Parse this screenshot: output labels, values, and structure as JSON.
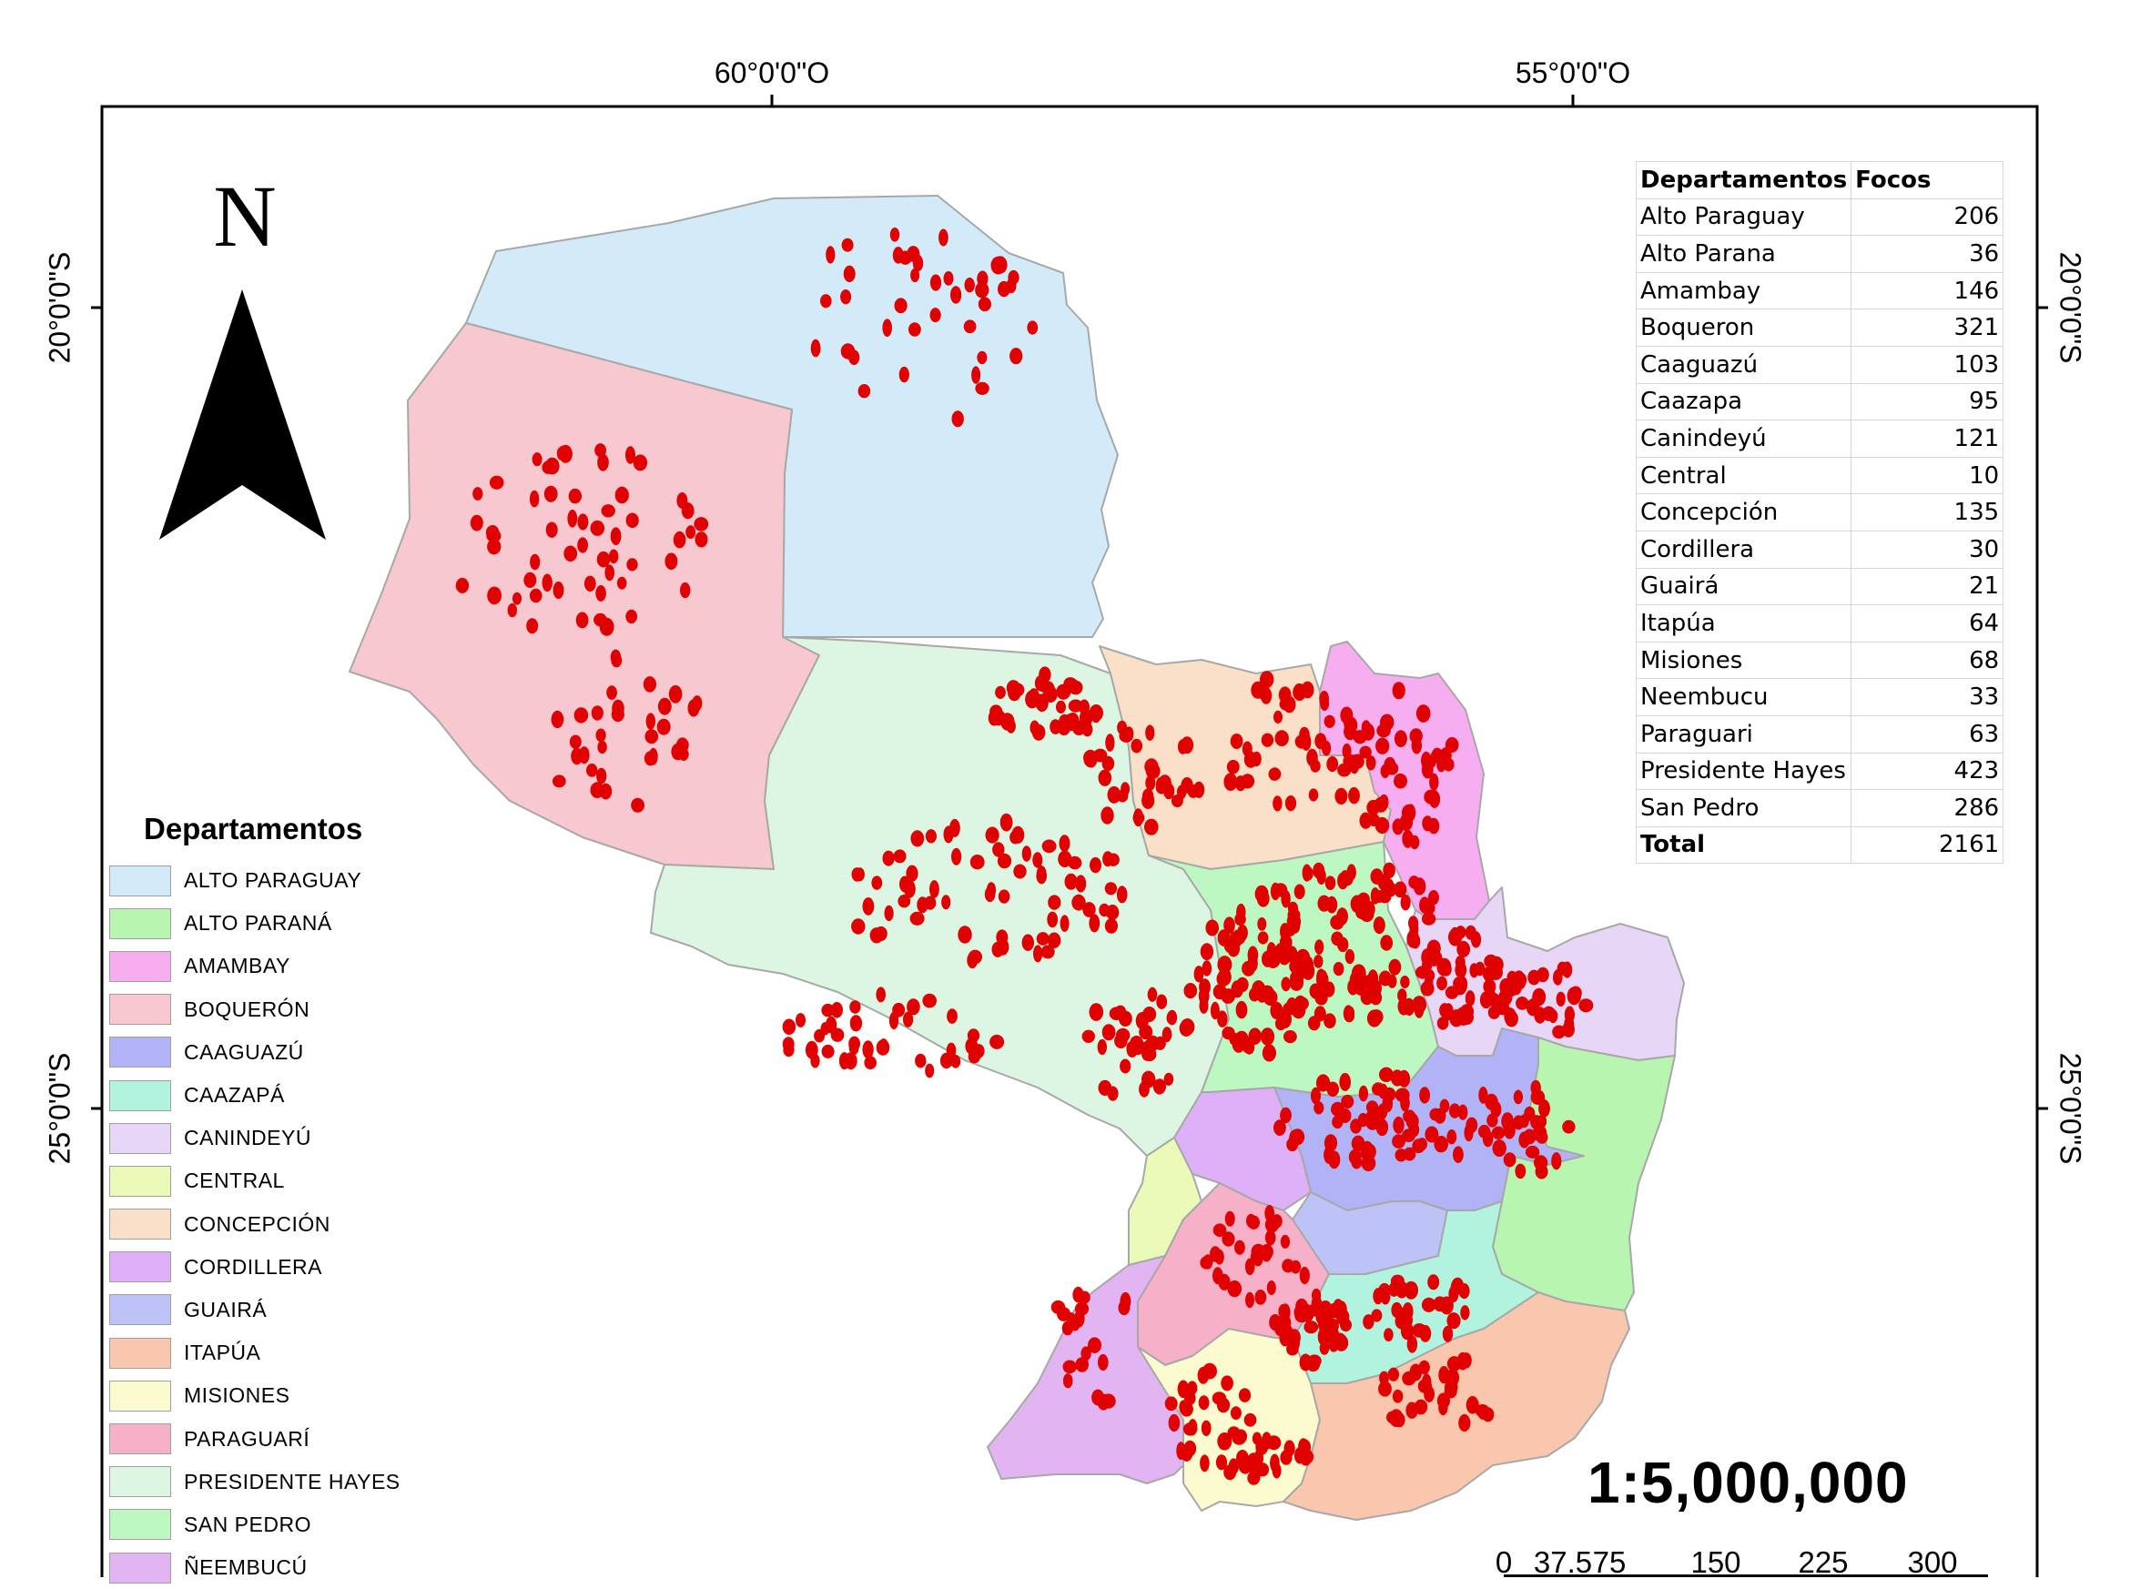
{
  "graticule": {
    "top": [
      "60°0'0\"O",
      "55°0'0\"O"
    ],
    "left": [
      "20°0'0\"S",
      "25°0'0\"S"
    ],
    "right": [
      "20°0'0\"S",
      "25°0'0\"S"
    ]
  },
  "north_arrow": {
    "label": "N"
  },
  "legend": {
    "title": "Departamentos",
    "items": [
      {
        "label": "ALTO PARAGUAY",
        "color": "#d3eaf8"
      },
      {
        "label": "ALTO PARANÁ",
        "color": "#b8f5b0"
      },
      {
        "label": "AMAMBAY",
        "color": "#f6aef0"
      },
      {
        "label": "BOQUERÓN",
        "color": "#f8c8d0"
      },
      {
        "label": "CAAGUAZÚ",
        "color": "#b1b3f6"
      },
      {
        "label": "CAAZAPÁ",
        "color": "#b2f3e0"
      },
      {
        "label": "CANINDEYÚ",
        "color": "#e8d6f7"
      },
      {
        "label": "CENTRAL",
        "color": "#eafab8"
      },
      {
        "label": "CONCEPCIÓN",
        "color": "#fbe0c9"
      },
      {
        "label": "CORDILLERA",
        "color": "#deb0f7"
      },
      {
        "label": "GUAIRÁ",
        "color": "#bdc3f7"
      },
      {
        "label": "ITAPÚA",
        "color": "#f9c7ae"
      },
      {
        "label": "MISIONES",
        "color": "#fcfbd0"
      },
      {
        "label": "PARAGUARÍ",
        "color": "#f6b0c7"
      },
      {
        "label": "PRESIDENTE HAYES",
        "color": "#dcf6e3"
      },
      {
        "label": "SAN PEDRO",
        "color": "#bdf7c2"
      },
      {
        "label": "ÑEEMBUCÚ",
        "color": "#e2b5f2"
      }
    ]
  },
  "table": {
    "headers": [
      "Departamentos",
      "Focos"
    ],
    "rows": [
      [
        "Alto Paraguay",
        "206"
      ],
      [
        "Alto Parana",
        "36"
      ],
      [
        "Amambay",
        "146"
      ],
      [
        "Boqueron",
        "321"
      ],
      [
        "Caaguazú",
        "103"
      ],
      [
        "Caazapa",
        "95"
      ],
      [
        "Canindeyú",
        "121"
      ],
      [
        "Central",
        "10"
      ],
      [
        "Concepción",
        "135"
      ],
      [
        "Cordillera",
        "30"
      ],
      [
        "Guairá",
        "21"
      ],
      [
        "Itapúa",
        "64"
      ],
      [
        "Misiones",
        "68"
      ],
      [
        "Neembucu",
        "33"
      ],
      [
        "Paraguari",
        "63"
      ],
      [
        "Presidente Hayes",
        "423"
      ],
      [
        "San Pedro",
        "286"
      ]
    ],
    "total": [
      "Total",
      "2161"
    ]
  },
  "scale": {
    "ratio": "1:5,000,000",
    "ticks": [
      "0",
      "37.5",
      "75",
      "150",
      "225",
      "300"
    ]
  },
  "colors": {
    "fire_marker": "#e00000",
    "region_border": "#a8a8a8"
  }
}
